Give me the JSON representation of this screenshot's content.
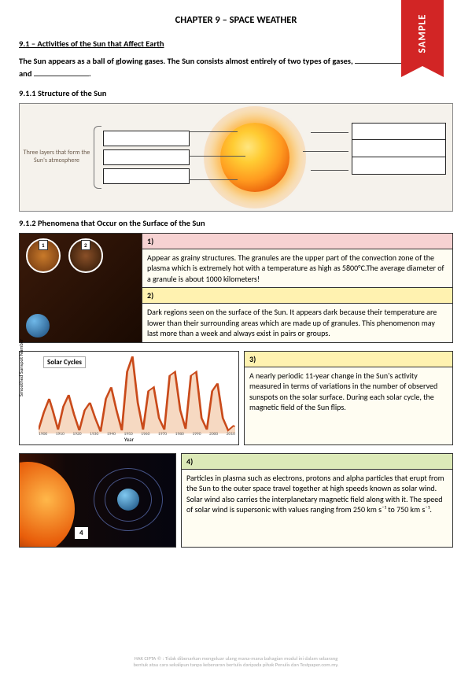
{
  "ribbon": "SAMPLE",
  "chapter_title": "CHAPTER 9 – SPACE WEATHER",
  "section_9_1": "9.1 – Activities of the Sun that Affect Earth",
  "intro_a": "The Sun appears as a ball of glowing gases. The Sun consists almost entirely of two types of gases, ",
  "intro_b": "and ",
  "intro_c": ".",
  "sub_9_1_1": "9.1.1 Structure of the Sun",
  "atmos_caption": "Three layers that form the Sun's atmosphere",
  "sub_9_1_2": "9.1.2 Phenomena that Occur on the Surface of the Sun",
  "phen1_hdr": "1)",
  "phen1_body": "Appear as grainy structures. The granules are the upper part of the convection zone of the plasma which is extremely hot with a temperature as high as 5800°C.The average diameter of a granule is about 1000 kilometers!",
  "phen2_hdr": "2)",
  "phen2_body": "Dark regions seen on the surface of the Sun. It appears dark because their temperature are lower than their surrounding areas which are made up of granules. This phenomenon may last more than a week and always exist in pairs or groups.",
  "chart_title": "Solar Cycles",
  "chart_ylabel": "Smoothed Sunspot Number",
  "chart_xlabel": "Year",
  "chart_xticks": [
    "1900",
    "1910",
    "1920",
    "1930",
    "1940",
    "1950",
    "1960",
    "1970",
    "1980",
    "1990",
    "2000",
    "2010"
  ],
  "phen3_hdr": "3)",
  "phen3_body": "A nearly periodic 11-year change in the Sun's activity measured in terms of variations in the number of observed sunspots on the solar surface. During each solar cycle, the magnetic field of the Sun flips.",
  "phen4_hdr": "4)",
  "phen4_body": "Particles in plasma such as electrons, protons and alpha particles that erupt from the Sun to the outer space travel together at high speeds known as solar wind. Solar wind also carries the interplanetary magnetic field along with it. The speed of solar wind is supersonic with values ranging from 250 km s⁻¹ to 750 km s⁻¹.",
  "wind_tag": "4",
  "footer_l1": "HAK CIPTA © : Tidak dibenarkan mengeluar ulang mana-mana bahagian modul ini dalam sebarang",
  "footer_l2": "bentuk atau cara sekalipun tanpa kebenaran bertulis daripada pihak Penulis dan Testpaper.com.my.",
  "chart": {
    "line_color": "#c94a1a",
    "fill_color": "#f2c9a8",
    "ymax": 200,
    "points": [
      [
        0,
        10
      ],
      [
        3,
        55
      ],
      [
        6,
        90
      ],
      [
        8,
        60
      ],
      [
        11,
        10
      ],
      [
        14,
        70
      ],
      [
        17,
        100
      ],
      [
        20,
        50
      ],
      [
        23,
        8
      ],
      [
        26,
        60
      ],
      [
        29,
        80
      ],
      [
        32,
        40
      ],
      [
        35,
        5
      ],
      [
        38,
        90
      ],
      [
        41,
        120
      ],
      [
        44,
        60
      ],
      [
        47,
        8
      ],
      [
        50,
        160
      ],
      [
        53,
        200
      ],
      [
        56,
        80
      ],
      [
        59,
        10
      ],
      [
        62,
        110
      ],
      [
        65,
        120
      ],
      [
        68,
        40
      ],
      [
        71,
        10
      ],
      [
        74,
        150
      ],
      [
        77,
        160
      ],
      [
        80,
        60
      ],
      [
        83,
        12
      ],
      [
        86,
        150
      ],
      [
        89,
        160
      ],
      [
        92,
        40
      ],
      [
        95,
        10
      ],
      [
        98,
        110
      ],
      [
        101,
        130
      ],
      [
        104,
        40
      ],
      [
        107,
        8
      ],
      [
        110,
        20
      ],
      [
        111,
        18
      ]
    ]
  }
}
